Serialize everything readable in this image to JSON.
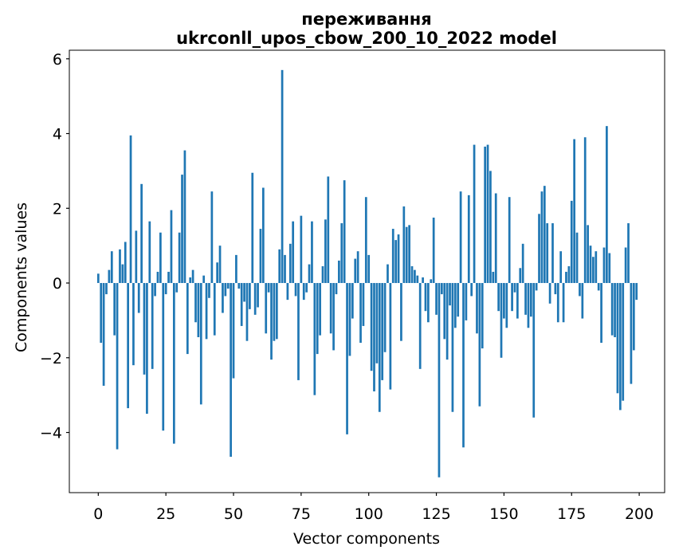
{
  "figure": {
    "title_line1": "переживання",
    "title_line2": "ukrconll_upos_cbow_200_10_2022 model",
    "xlabel": "Vector components",
    "ylabel": "Components values",
    "background_color": "#ffffff",
    "bar_color": "#1f77b4",
    "spine_color": "#000000"
  },
  "chart_data": {
    "type": "bar",
    "title": "переживання — ukrconll_upos_cbow_200_10_2022 model",
    "xlabel": "Vector components",
    "ylabel": "Components values",
    "legend": null,
    "grid": false,
    "x_ticks": [
      0,
      25,
      50,
      75,
      100,
      125,
      150,
      175,
      200
    ],
    "y_ticks": [
      6,
      4,
      2,
      0,
      -2,
      -4
    ],
    "xlim": [
      -10.7,
      209.4
    ],
    "ylim": [
      -5.61,
      6.23
    ],
    "bar_width": 0.8,
    "values": [
      0.25,
      -1.6,
      -2.75,
      -0.3,
      0.35,
      0.85,
      -1.4,
      -4.45,
      0.9,
      0.5,
      1.1,
      -3.35,
      3.95,
      -2.2,
      1.4,
      -0.8,
      2.65,
      -2.45,
      -3.5,
      1.65,
      -2.3,
      -0.35,
      0.3,
      1.35,
      -3.95,
      -0.3,
      0.3,
      1.95,
      -4.3,
      -0.25,
      1.35,
      2.9,
      3.55,
      -1.9,
      0.15,
      0.35,
      -1.05,
      -1.45,
      -3.25,
      0.2,
      -1.5,
      -0.4,
      2.45,
      -1.4,
      0.55,
      1.0,
      -0.8,
      -0.35,
      -0.15,
      -4.65,
      -2.55,
      0.75,
      -0.15,
      -1.15,
      -0.5,
      -1.55,
      -0.7,
      2.95,
      -0.85,
      -0.65,
      1.45,
      2.55,
      -1.35,
      -0.25,
      -2.05,
      -1.55,
      -1.5,
      0.9,
      5.7,
      0.75,
      -0.45,
      1.05,
      1.65,
      -0.35,
      -2.6,
      1.8,
      -0.45,
      -0.25,
      0.5,
      1.65,
      -3.0,
      -1.9,
      -1.4,
      0.45,
      1.7,
      2.85,
      -1.35,
      -1.8,
      -0.3,
      0.6,
      1.6,
      2.75,
      -4.05,
      -1.95,
      -0.95,
      0.65,
      0.85,
      -1.6,
      -1.15,
      2.3,
      0.75,
      -2.35,
      -2.9,
      -2.15,
      -3.45,
      -2.6,
      -1.85,
      0.5,
      -2.85,
      1.45,
      1.15,
      1.3,
      -1.55,
      2.05,
      1.5,
      1.55,
      0.45,
      0.35,
      0.2,
      -2.3,
      0.15,
      -0.75,
      -1.05,
      0.1,
      1.75,
      -0.85,
      -5.2,
      -0.3,
      -1.5,
      -2.05,
      -0.6,
      -3.45,
      -1.2,
      -0.9,
      2.45,
      -4.4,
      -1.0,
      2.35,
      -0.35,
      3.7,
      -1.35,
      -3.3,
      -1.75,
      3.65,
      3.7,
      3.0,
      0.3,
      2.4,
      -0.75,
      -2.0,
      -0.95,
      -1.2,
      2.3,
      -0.75,
      -0.25,
      -0.95,
      0.4,
      1.05,
      -0.85,
      -1.2,
      -0.9,
      -3.6,
      -0.2,
      1.85,
      2.45,
      2.6,
      1.6,
      -0.55,
      1.6,
      -0.3,
      -1.05,
      0.85,
      -1.05,
      0.3,
      0.45,
      2.2,
      3.85,
      1.35,
      -0.35,
      -0.95,
      3.9,
      1.55,
      1.0,
      0.7,
      0.85,
      -0.2,
      -1.6,
      0.95,
      4.2,
      0.8,
      -1.4,
      -1.45,
      -2.95,
      -3.4,
      -3.15,
      0.95,
      1.6,
      -2.7,
      -1.8,
      -0.45
    ]
  }
}
